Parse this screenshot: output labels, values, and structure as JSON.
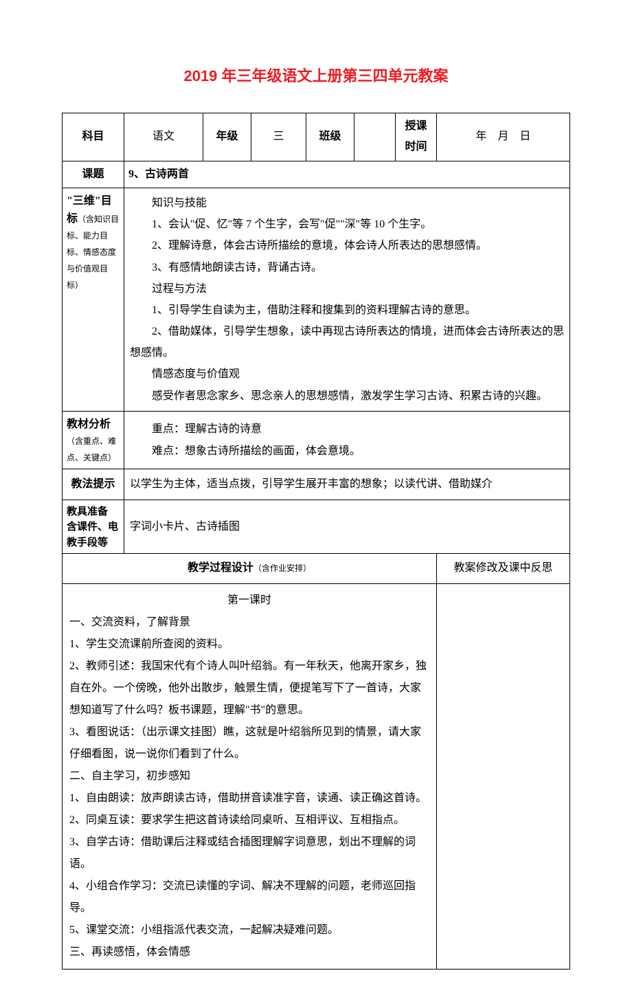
{
  "title": "2019 年三年级语文上册第三四单元教案",
  "header": {
    "subject_label": "科目",
    "subject_value": "语文",
    "grade_label": "年级",
    "grade_value": "三",
    "class_label": "班级",
    "class_value": "",
    "time_label": "授课时间",
    "time_value": "年　月　日"
  },
  "topic_label": "课题",
  "topic_value": "9、古诗两首",
  "goals_label_main": "\"三维\"目标",
  "goals_label_note": "（含知识目标、能力目标、情感态度与价值观目标）",
  "goals_content": "　　知识与技能\n　　1、会认\"促、忆\"等 7 个生字，会写\"促\"\"深\"等 10 个生字。\n　　2、理解诗意，体会古诗所描绘的意境，体会诗人所表达的思想感情。\n　　3、有感情地朗读古诗，背诵古诗。\n　　过程与方法\n　　1、引导学生自读为主，借助注释和搜集到的资料理解古诗的意思。\n　　2、借助媒体，引导学生想象，读中再现古诗所表达的情境，进而体会古诗所表达的思想感情。\n　　情感态度与价值观\n　　感受作者思念家乡、思念亲人的思想感情，激发学生学习古诗、积累古诗的兴趣。",
  "material_label_main": "教材分析",
  "material_label_note": "（含重点、难点、关键点）",
  "material_content": "　　重点：理解古诗的诗意\n　　难点：想象古诗所描绘的画面，体会意境。",
  "method_label": "教法提示",
  "method_content": "以学生为主体，适当点拨，引导学生展开丰富的想象；以读代讲、借助媒介",
  "tools_label": "教具准备\n含课件、电教手段等",
  "tools_content": "字词小卡片、古诗插图",
  "process_label_main": "教学过程设计",
  "process_label_note": "（含作业安排）",
  "notes_label": "教案修改及课中反思",
  "process_body": {
    "lesson_title": "第一课时",
    "lines": [
      "一、交流资料，了解背景",
      "1、学生交流课前所查阅的资料。",
      "2、教师引述：我国宋代有个诗人叫叶绍翁。有一年秋天，他离开家乡，独自在外。一个傍晚，他外出散步，触景生情，便提笔写下了一首诗，大家想知道写了什么吗？板书课题，理解\"书\"的意思。",
      "3、看图说话：（出示课文挂图）瞧，这就是叶绍翁所见到的情景，请大家仔细看图，说一说你们看到了什么。",
      "二、自主学习，初步感知",
      "1、自由朗读：放声朗读古诗，借助拼音读准字音，读通、读正确这首诗。",
      "2、同桌互读：要求学生把这首诗读给同桌听、互相评议、互相指点。",
      "3、自学古诗：借助课后注释或结合插图理解字词意思，划出不理解的词语。",
      "4、小组合作学习：交流已读懂的字词、解决不理解的问题，老师巡回指导。",
      "5、课堂交流：小组指派代表交流，一起解决疑难问题。",
      "三、再读感悟，体会情感"
    ]
  },
  "colors": {
    "title_color": "#ed1c24",
    "border_color": "#000000",
    "text_color": "#000000",
    "background": "#ffffff"
  }
}
